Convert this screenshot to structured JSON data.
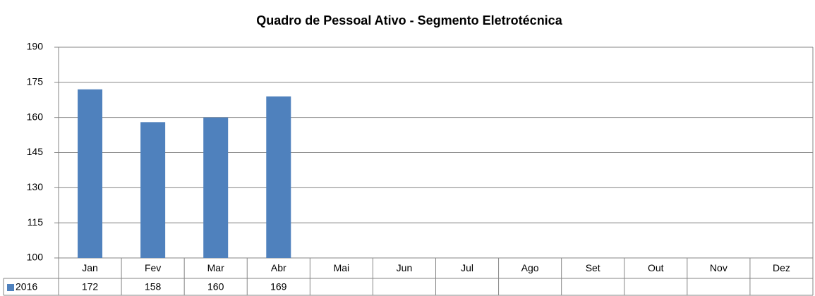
{
  "chart_data": {
    "type": "bar",
    "title": "Quadro de Pessoal Ativo - Segmento Eletrotécnica",
    "categories": [
      "Jan",
      "Fev",
      "Mar",
      "Abr",
      "Mai",
      "Jun",
      "Jul",
      "Ago",
      "Set",
      "Out",
      "Nov",
      "Dez"
    ],
    "series": [
      {
        "name": "2016",
        "color": "#4f81bd",
        "values": [
          172,
          158,
          160,
          169,
          null,
          null,
          null,
          null,
          null,
          null,
          null,
          null
        ]
      }
    ],
    "ylim": [
      100,
      190
    ],
    "yticks": [
      100,
      115,
      130,
      145,
      160,
      175,
      190
    ],
    "grid": true
  }
}
